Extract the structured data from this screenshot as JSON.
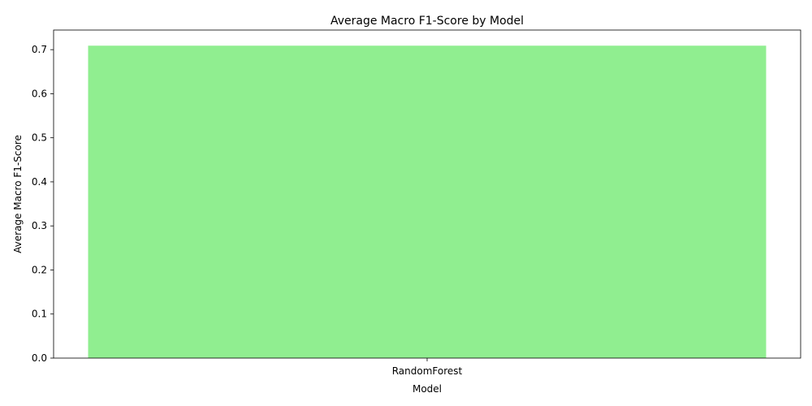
{
  "chart_data": {
    "type": "bar",
    "title": "Average Macro F1-Score by Model",
    "xlabel": "Model",
    "ylabel": "Average Macro F1-Score",
    "categories": [
      "RandomForest"
    ],
    "values": [
      0.709
    ],
    "ylim": [
      0,
      0.7445
    ],
    "yticks": [
      0.0,
      0.1,
      0.2,
      0.3,
      0.4,
      0.5,
      0.6,
      0.7
    ],
    "ytick_labels": [
      "0.0",
      "0.1",
      "0.2",
      "0.3",
      "0.4",
      "0.5",
      "0.6",
      "0.7"
    ],
    "bar_color": "#90ee90",
    "grid": false,
    "legend": "none"
  }
}
